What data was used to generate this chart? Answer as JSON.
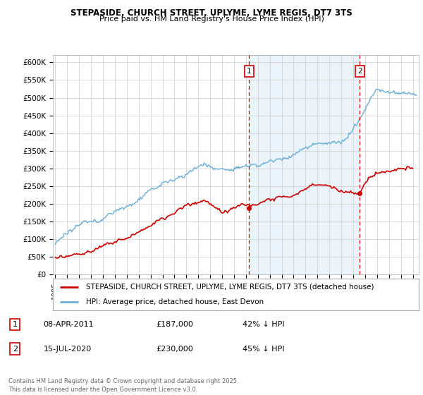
{
  "title_line1": "STEPASIDE, CHURCH STREET, UPLYME, LYME REGIS, DT7 3TS",
  "title_line2": "Price paid vs. HM Land Registry's House Price Index (HPI)",
  "ylabel_ticks": [
    "£0",
    "£50K",
    "£100K",
    "£150K",
    "£200K",
    "£250K",
    "£300K",
    "£350K",
    "£400K",
    "£450K",
    "£500K",
    "£550K",
    "£600K"
  ],
  "ytick_values": [
    0,
    50000,
    100000,
    150000,
    200000,
    250000,
    300000,
    350000,
    400000,
    450000,
    500000,
    550000,
    600000
  ],
  "hpi_color": "#6baed6",
  "hpi_fill_color": "#ddeef8",
  "price_color": "#cc0000",
  "marker1_date_x": 2011.27,
  "marker1_price": 187000,
  "marker1_label": "1",
  "marker2_date_x": 2020.54,
  "marker2_price": 230000,
  "marker2_label": "2",
  "vline_color": "#cc0000",
  "marker_box_color": "#cc0000",
  "legend_line1": "STEPASIDE, CHURCH STREET, UPLYME, LYME REGIS, DT7 3TS (detached house)",
  "legend_line2": "HPI: Average price, detached house, East Devon",
  "footnote": "Contains HM Land Registry data © Crown copyright and database right 2025.\nThis data is licensed under the Open Government Licence v3.0.",
  "background_color": "#ffffff",
  "plot_bg_color": "#ffffff",
  "grid_color": "#cccccc",
  "xlim_start": 1994.8,
  "xlim_end": 2025.5,
  "ylim_max": 620000,
  "title_fontsize": 8.5,
  "subtitle_fontsize": 8,
  "tick_fontsize": 7.5,
  "legend_fontsize": 7.5
}
